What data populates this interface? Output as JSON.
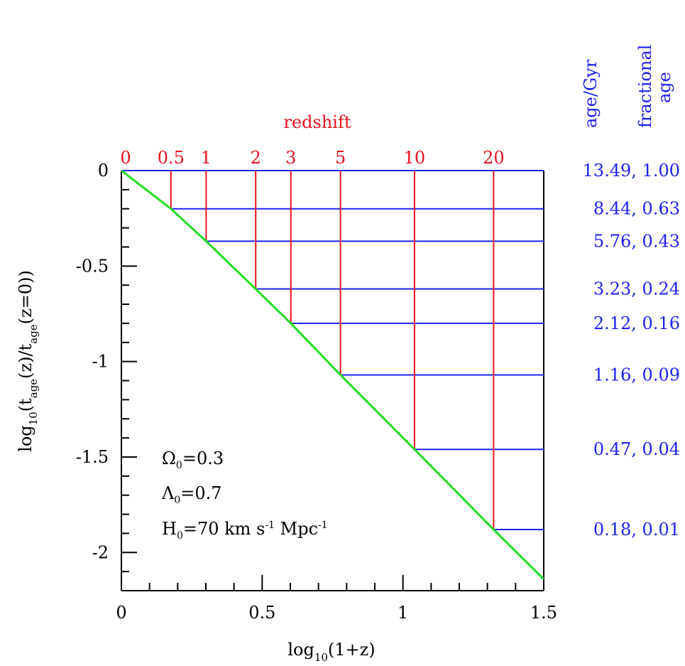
{
  "chart_data": {
    "type": "line",
    "xlabel": "log10(1+z)",
    "ylabel": "log10(tage(z)/tage(z=0))",
    "xlim": [
      0,
      1.5
    ],
    "ylim": [
      -2.2,
      0
    ],
    "x_ticks": [
      "0",
      "0.5",
      "1",
      "1.5"
    ],
    "y_ticks": [
      "0",
      "-0.5",
      "-1",
      "-1.5",
      "-2"
    ],
    "top_axis_title": "redshift",
    "right_header_1": "age/Gyr",
    "right_header_2a": "fractional",
    "right_header_2b": "age",
    "annotations": [
      "Ω0=0.3",
      "Λ0=0.7",
      "H0=70 km s-1 Mpc-1"
    ],
    "series": [
      {
        "x": [
          0,
          0.176,
          0.301,
          0.477,
          0.602,
          0.778,
          1.041,
          1.322,
          1.5
        ],
        "y": [
          0,
          -0.2,
          -0.37,
          -0.62,
          -0.8,
          -1.07,
          -1.46,
          -1.88,
          -2.14
        ]
      }
    ],
    "redshifts": [
      {
        "label": "0",
        "logx": 0.0,
        "logt": 0.0,
        "age": "13.49, 1.00"
      },
      {
        "label": "0.5",
        "logx": 0.176,
        "logt": -0.2,
        "age": "8.44, 0.63"
      },
      {
        "label": "1",
        "logx": 0.301,
        "logt": -0.37,
        "age": "5.76, 0.43"
      },
      {
        "label": "2",
        "logx": 0.477,
        "logt": -0.62,
        "age": "3.23, 0.24"
      },
      {
        "label": "3",
        "logx": 0.602,
        "logt": -0.8,
        "age": "2.12, 0.16"
      },
      {
        "label": "5",
        "logx": 0.778,
        "logt": -1.07,
        "age": "1.16, 0.09"
      },
      {
        "label": "10",
        "logx": 1.041,
        "logt": -1.46,
        "age": "0.47, 0.04"
      },
      {
        "label": "20",
        "logx": 1.322,
        "logt": -1.88,
        "age": "0.18, 0.01"
      }
    ],
    "colors": {
      "curve": "#22dd22",
      "redshift": "#e8121c",
      "age": "#1e22f0",
      "axis": "#000000"
    }
  }
}
